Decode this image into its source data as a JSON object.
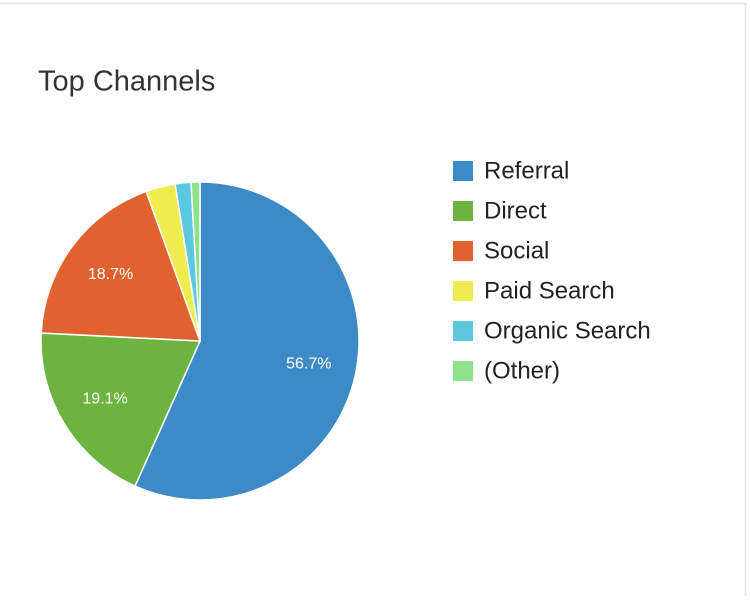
{
  "chart_data": {
    "type": "pie",
    "title": "Top Channels",
    "categories": [
      "Referral",
      "Direct",
      "Social",
      "Paid Search",
      "Organic Search",
      "(Other)"
    ],
    "values": [
      56.7,
      19.1,
      18.7,
      3.0,
      1.6,
      0.9
    ],
    "value_labels": [
      "56.7%",
      "19.1%",
      "18.7%",
      null,
      null,
      null
    ],
    "colors": [
      "#3d8bc6",
      "#6db33f",
      "#e0622f",
      "#eded4f",
      "#5bc8e0",
      "#8ee28a"
    ],
    "legend": "right"
  }
}
